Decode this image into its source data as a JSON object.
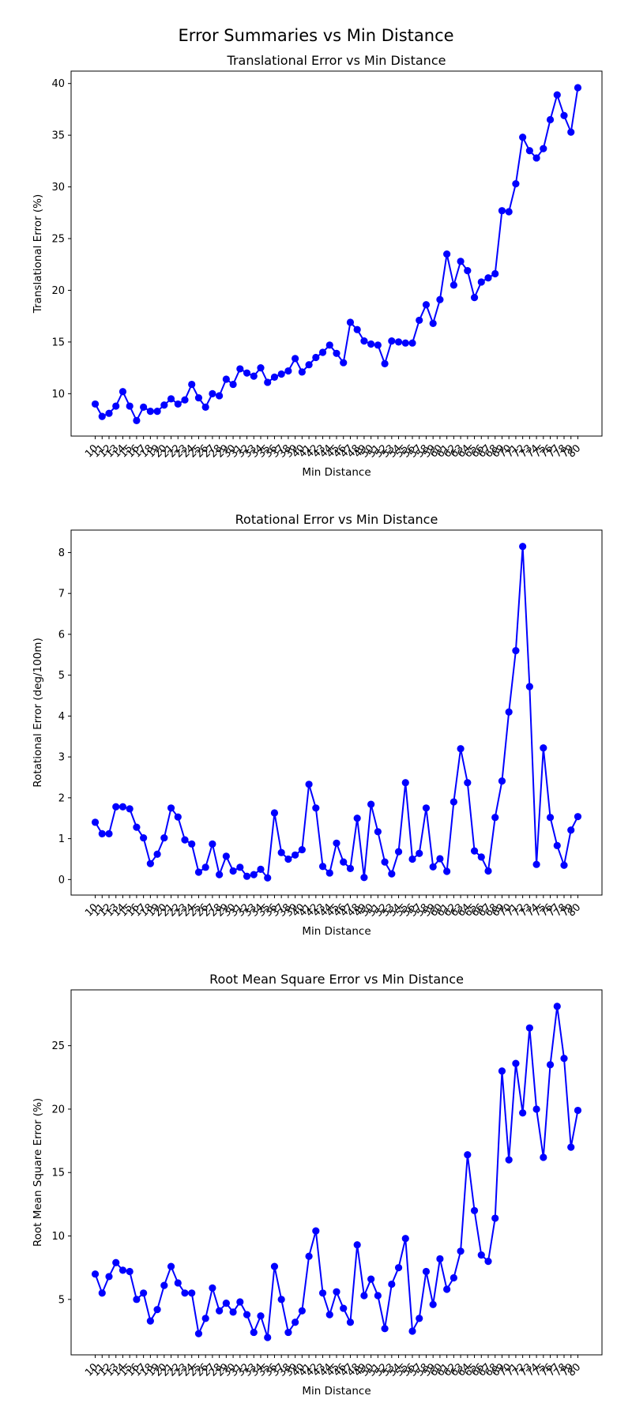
{
  "figure_title": "Error Summaries vs Min Distance",
  "colors": {
    "series": "#0000ff",
    "axes": "#000000",
    "background": "#ffffff"
  },
  "chart_data": [
    {
      "type": "line",
      "title": "Translational Error vs Min Distance",
      "xlabel": "Min Distance",
      "ylabel": "Translational Error (%)",
      "ylim": [
        5.9,
        41.2
      ],
      "yticks": [
        10,
        15,
        20,
        25,
        30,
        35,
        40
      ],
      "grid": false,
      "marker": "circle",
      "x": [
        10,
        11,
        12,
        13,
        14,
        15,
        16,
        17,
        18,
        19,
        20,
        21,
        22,
        23,
        24,
        25,
        26,
        27,
        28,
        29,
        30,
        31,
        32,
        33,
        34,
        35,
        36,
        37,
        38,
        39,
        40,
        41,
        42,
        43,
        44,
        45,
        46,
        47,
        48,
        49,
        50,
        51,
        52,
        53,
        54,
        55,
        56,
        57,
        58,
        59,
        60,
        61,
        62,
        63,
        64,
        65,
        66,
        67,
        68,
        69,
        70,
        71,
        72,
        73,
        74,
        75,
        76,
        77,
        78,
        79,
        80
      ],
      "series": [
        {
          "values": [
            9.0,
            7.8,
            8.1,
            8.8,
            10.2,
            8.8,
            7.4,
            8.7,
            8.3,
            8.3,
            8.9,
            9.5,
            9.0,
            9.4,
            10.9,
            9.6,
            8.7,
            10.0,
            9.8,
            11.4,
            10.9,
            12.4,
            12.0,
            11.7,
            12.5,
            11.1,
            11.6,
            11.9,
            12.2,
            13.4,
            12.1,
            12.8,
            13.5,
            14.0,
            14.7,
            13.9,
            13.0,
            16.9,
            16.2,
            15.1,
            14.8,
            14.7,
            12.9,
            15.1,
            15.0,
            14.9,
            14.9,
            17.1,
            18.6,
            16.8,
            19.1,
            23.5,
            20.5,
            22.8,
            21.9,
            19.3,
            20.8,
            21.2,
            21.6,
            27.7,
            27.6,
            30.3,
            34.8,
            33.5,
            32.8,
            33.7,
            36.5,
            38.9,
            36.9,
            35.3,
            39.6
          ]
        }
      ]
    },
    {
      "type": "line",
      "title": "Rotational Error vs Min Distance",
      "xlabel": "Min Distance",
      "ylabel": "Rotational Error (deg/100m)",
      "ylim": [
        -0.38,
        8.55
      ],
      "yticks": [
        0,
        1,
        2,
        3,
        4,
        5,
        6,
        7,
        8
      ],
      "grid": false,
      "marker": "circle",
      "x": [
        10,
        11,
        12,
        13,
        14,
        15,
        16,
        17,
        18,
        19,
        20,
        21,
        22,
        23,
        24,
        25,
        26,
        27,
        28,
        29,
        30,
        31,
        32,
        33,
        34,
        35,
        36,
        37,
        38,
        39,
        40,
        41,
        42,
        43,
        44,
        45,
        46,
        47,
        48,
        49,
        50,
        51,
        52,
        53,
        54,
        55,
        56,
        57,
        58,
        59,
        60,
        61,
        62,
        63,
        64,
        65,
        66,
        67,
        68,
        69,
        70,
        71,
        72,
        73,
        74,
        75,
        76,
        77,
        78,
        79,
        80
      ],
      "series": [
        {
          "values": [
            1.4,
            1.12,
            1.12,
            1.78,
            1.78,
            1.73,
            1.28,
            1.02,
            0.39,
            0.62,
            1.02,
            1.75,
            1.53,
            0.97,
            0.87,
            0.18,
            0.3,
            0.87,
            0.12,
            0.57,
            0.21,
            0.3,
            0.08,
            0.12,
            0.25,
            0.04,
            1.63,
            0.66,
            0.5,
            0.6,
            0.73,
            2.33,
            1.75,
            0.32,
            0.16,
            0.89,
            0.43,
            0.27,
            1.5,
            0.05,
            1.84,
            1.17,
            0.43,
            0.14,
            0.68,
            2.37,
            0.5,
            0.64,
            1.75,
            0.31,
            0.51,
            0.2,
            1.9,
            3.2,
            2.37,
            0.7,
            0.55,
            0.21,
            1.52,
            2.41,
            4.1,
            5.6,
            8.15,
            4.72,
            0.37,
            3.22,
            1.52,
            0.83,
            0.35,
            1.21,
            1.54
          ]
        }
      ]
    },
    {
      "type": "line",
      "title": "Root Mean Square Error vs Min Distance",
      "xlabel": "Min Distance",
      "ylabel": "Root Mean Square Error (%)",
      "ylim": [
        0.63,
        29.4
      ],
      "yticks": [
        5,
        10,
        15,
        20,
        25
      ],
      "grid": false,
      "marker": "circle",
      "x": [
        10,
        11,
        12,
        13,
        14,
        15,
        16,
        17,
        18,
        19,
        20,
        21,
        22,
        23,
        24,
        25,
        26,
        27,
        28,
        29,
        30,
        31,
        32,
        33,
        34,
        35,
        36,
        37,
        38,
        39,
        40,
        41,
        42,
        43,
        44,
        45,
        46,
        47,
        48,
        49,
        50,
        51,
        52,
        53,
        54,
        55,
        56,
        57,
        58,
        59,
        60,
        61,
        62,
        63,
        64,
        65,
        66,
        67,
        68,
        69,
        70,
        71,
        72,
        73,
        74,
        75,
        76,
        77,
        78,
        79,
        80
      ],
      "series": [
        {
          "values": [
            7.0,
            5.5,
            6.8,
            7.9,
            7.3,
            7.2,
            5.0,
            5.5,
            3.3,
            4.2,
            6.1,
            7.6,
            6.3,
            5.5,
            5.5,
            2.3,
            3.5,
            5.9,
            4.1,
            4.7,
            4.0,
            4.8,
            3.8,
            2.4,
            3.7,
            2.0,
            7.6,
            5.0,
            2.4,
            3.2,
            4.1,
            8.4,
            10.4,
            5.5,
            3.8,
            5.6,
            4.3,
            3.2,
            9.3,
            5.3,
            6.6,
            5.3,
            2.7,
            6.2,
            7.5,
            9.8,
            2.5,
            3.5,
            7.2,
            4.6,
            8.2,
            5.8,
            6.7,
            8.8,
            16.4,
            12.0,
            8.5,
            8.0,
            11.4,
            23.0,
            16.0,
            23.6,
            19.7,
            26.4,
            20.0,
            16.2,
            23.5,
            28.1,
            24.0,
            17.0,
            19.9
          ]
        }
      ]
    }
  ]
}
